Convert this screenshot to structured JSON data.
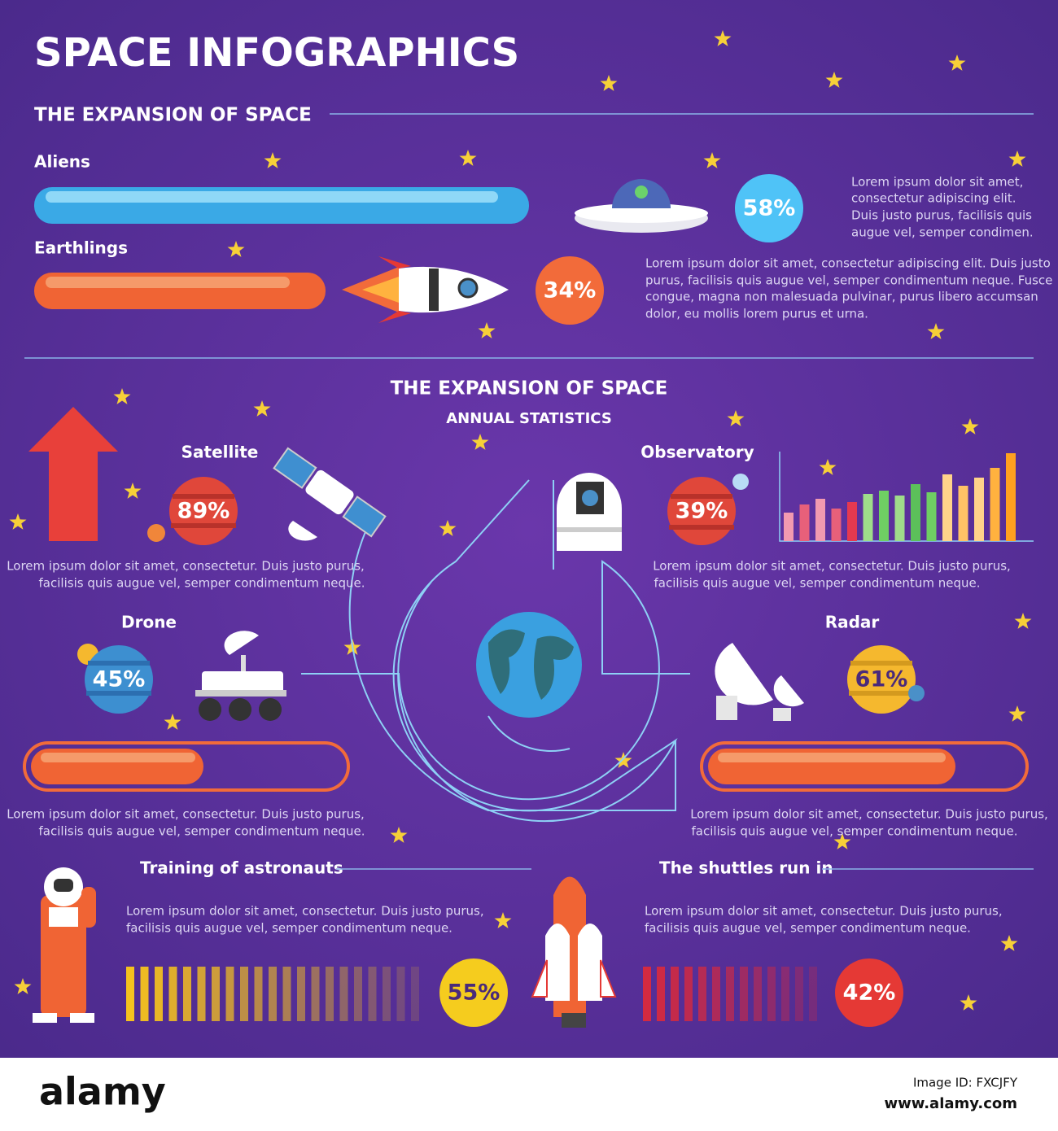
{
  "header": {
    "title": "SPACE INFOGRAPHICS"
  },
  "section1": {
    "title": "THE EXPANSION OF SPACE",
    "aliens": {
      "label": "Aliens",
      "percent": "58%",
      "text": [
        "Lorem ipsum dolor sit amet,",
        "consectetur adipiscing elit.",
        "Duis justo purus, facilisis quis",
        "augue vel, semper condimen."
      ]
    },
    "earthlings": {
      "label": "Earthlings",
      "percent": "34%",
      "text": [
        "Lorem ipsum dolor sit amet, consectetur adipiscing elit. Duis justo",
        "purus, facilisis quis augue vel, semper condimentum neque. Fusce",
        "congue, magna non malesuada pulvinar, purus libero accumsan",
        "dolor, eu mollis lorem purus et urna."
      ]
    }
  },
  "section2": {
    "title": "THE EXPANSION OF SPACE",
    "subtitle": "ANNUAL STATISTICS",
    "satellite": {
      "label": "Satellite",
      "percent": "89%",
      "text": [
        "Lorem ipsum dolor sit amet, consectetur. Duis justo purus,",
        "facilisis quis augue vel, semper condimentum neque."
      ]
    },
    "observatory": {
      "label": "Observatory",
      "percent": "39%",
      "text": [
        "Lorem ipsum dolor sit amet, consectetur. Duis justo purus,",
        "facilisis quis augue vel, semper condimentum neque."
      ]
    },
    "drone": {
      "label": "Drone",
      "percent": "45%",
      "text": [
        "Lorem ipsum dolor sit amet, consectetur. Duis justo purus,",
        "facilisis quis augue vel, semper condimentum neque."
      ]
    },
    "radar": {
      "label": "Radar",
      "percent": "61%",
      "text": [
        "Lorem ipsum dolor sit amet, consectetur. Duis justo purus,",
        "facilisis quis augue vel, semper condimentum neque."
      ]
    }
  },
  "section3": {
    "training": {
      "label": "Training of astronauts",
      "percent": "55%",
      "text": [
        "Lorem ipsum dolor sit amet, consectetur. Duis justo purus,",
        "facilisis quis augue vel, semper condimentum neque."
      ]
    },
    "shuttles": {
      "label": "The shuttles run in",
      "percent": "42%",
      "text": [
        "Lorem ipsum dolor sit amet, consectetur. Duis justo purus,",
        "facilisis quis augue vel, semper condimentum neque."
      ]
    }
  },
  "footer": {
    "logo": "alamy",
    "image_id": "Image ID: FXCJFY",
    "url": "www.alamy.com"
  }
}
